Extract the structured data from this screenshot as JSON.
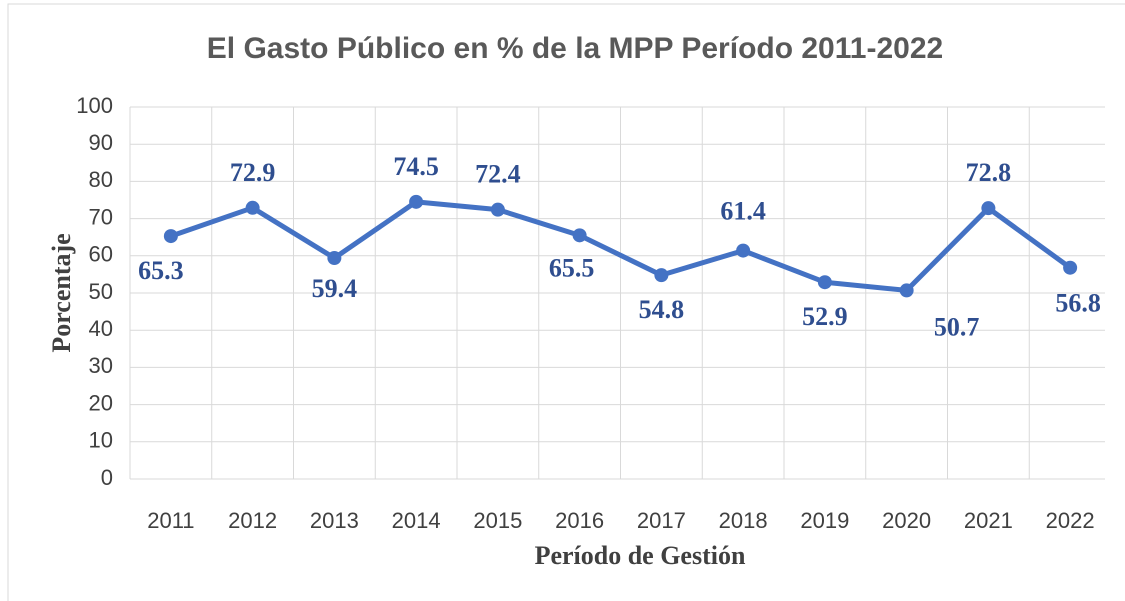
{
  "chart_data": {
    "type": "line",
    "title": "El Gasto Público en % de la MPP Período 2011-2022",
    "x_label": "Período de Gestión",
    "y_label": "Porcentaje",
    "categories": [
      "2011",
      "2012",
      "2013",
      "2014",
      "2015",
      "2016",
      "2017",
      "2018",
      "2019",
      "2020",
      "2021",
      "2022"
    ],
    "values": [
      65.3,
      72.9,
      59.4,
      74.5,
      72.4,
      65.5,
      54.8,
      61.4,
      52.9,
      50.7,
      72.8,
      56.8
    ],
    "color": "#4472c4",
    "label_color": "#2f4e8f",
    "ylim": [
      0,
      100
    ],
    "yticks": [
      0,
      10,
      20,
      30,
      40,
      50,
      60,
      70,
      80,
      90,
      100
    ],
    "grid": true
  }
}
